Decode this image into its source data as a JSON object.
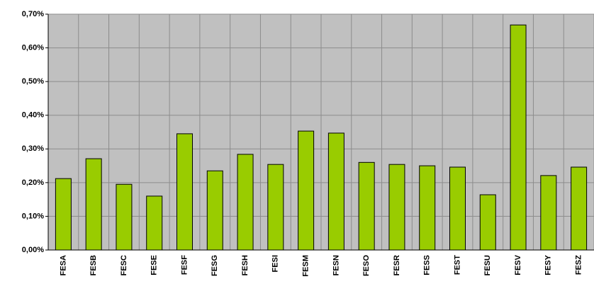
{
  "chart_data": {
    "type": "bar",
    "categories": [
      "FESA",
      "FESB",
      "FESC",
      "FESE",
      "FESF",
      "FESG",
      "FESH",
      "FESI",
      "FESM",
      "FESN",
      "FESO",
      "FESR",
      "FESS",
      "FEST",
      "FESU",
      "FESV",
      "FESY",
      "FESZ"
    ],
    "values": [
      0.212,
      0.271,
      0.195,
      0.16,
      0.345,
      0.235,
      0.284,
      0.254,
      0.353,
      0.347,
      0.26,
      0.254,
      0.25,
      0.246,
      0.164,
      0.668,
      0.221,
      0.246
    ],
    "color": "#99cc00",
    "ylim": [
      0,
      0.7
    ],
    "yticks": [
      {
        "value": 0,
        "label": "0,00%"
      },
      {
        "value": 0.1,
        "label": "0,10%"
      },
      {
        "value": 0.2,
        "label": "0,20%"
      },
      {
        "value": 0.3,
        "label": "0,30%"
      },
      {
        "value": 0.4,
        "label": "0,40%"
      },
      {
        "value": 0.5,
        "label": "0,50%"
      },
      {
        "value": 0.6,
        "label": "0,60%"
      },
      {
        "value": 0.7,
        "label": "0,70%"
      }
    ],
    "grid": true
  }
}
